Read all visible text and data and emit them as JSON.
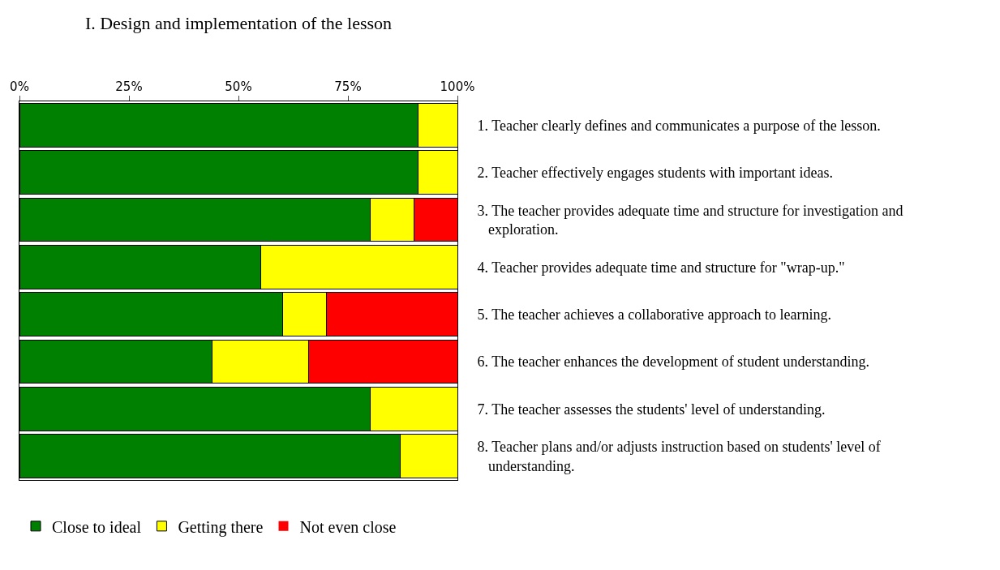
{
  "chart_data": {
    "type": "bar",
    "orientation": "horizontal",
    "stacked": true,
    "title": "I. Design and implementation of the lesson",
    "categories": [
      "1. Teacher clearly defines and communicates a purpose of the lesson.",
      "2. Teacher effectively engages students with important ideas.",
      "3. The teacher provides adequate time and structure for investigation and exploration.",
      "4. Teacher provides adequate time and structure for \"wrap-up.\"",
      "5. The teacher achieves a collaborative approach to learning.",
      "6. The teacher enhances the development of student understanding.",
      "7. The teacher assesses the students' level of understanding.",
      "8. Teacher plans and/or adjusts instruction based on students' level of understanding."
    ],
    "series": [
      {
        "name": "Close to ideal",
        "color": "#008000",
        "values": [
          91,
          91,
          80,
          55,
          60,
          44,
          80,
          87
        ]
      },
      {
        "name": "Getting there",
        "color": "#ffff00",
        "values": [
          9,
          9,
          10,
          45,
          10,
          22,
          20,
          13
        ]
      },
      {
        "name": "Not even close",
        "color": "#ff0000",
        "values": [
          0,
          0,
          10,
          0,
          30,
          34,
          0,
          0
        ]
      }
    ],
    "xlim": [
      0,
      100
    ],
    "xticks": [
      {
        "value": 0,
        "label": "0%"
      },
      {
        "value": 25,
        "label": "25%"
      },
      {
        "value": 50,
        "label": "50%"
      },
      {
        "value": 75,
        "label": "75%"
      },
      {
        "value": 100,
        "label": "100%"
      }
    ],
    "grid": false,
    "legend": "bottom"
  }
}
